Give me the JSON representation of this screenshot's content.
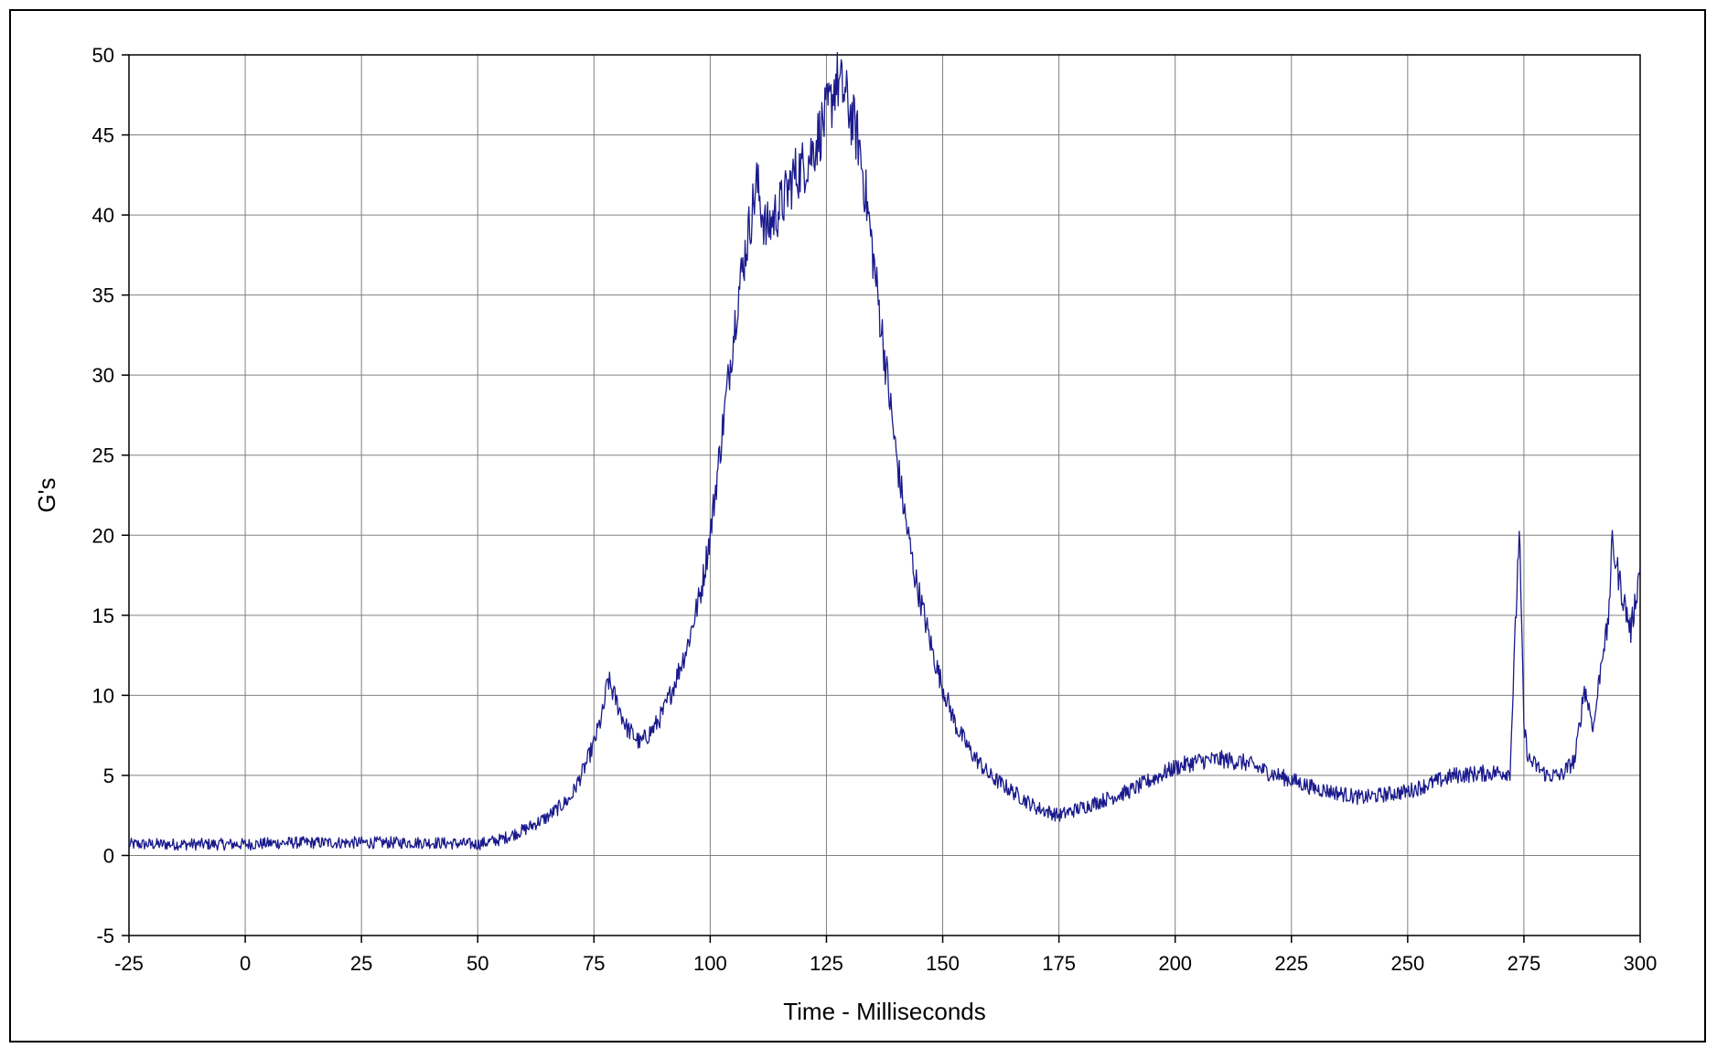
{
  "chart_data": {
    "type": "line",
    "title": "",
    "xlabel": "Time - Milliseconds",
    "ylabel": "G's",
    "xlim": [
      -25,
      300
    ],
    "ylim": [
      -5,
      50
    ],
    "x_ticks": [
      -25,
      0,
      25,
      50,
      75,
      100,
      125,
      150,
      175,
      200,
      225,
      250,
      275,
      300
    ],
    "y_ticks": [
      -5,
      0,
      5,
      10,
      15,
      20,
      25,
      30,
      35,
      40,
      45,
      50
    ],
    "x_tick_labels": [
      "-25",
      "0",
      "25",
      "50",
      "75",
      "100",
      "125",
      "150",
      "175",
      "200",
      "225",
      "250",
      "275",
      "300"
    ],
    "y_tick_labels": [
      "-5",
      "0",
      "5",
      "10",
      "15",
      "20",
      "25",
      "30",
      "35",
      "40",
      "45",
      "50"
    ],
    "grid": true,
    "legend": "none",
    "colors": {
      "series": "#1a1a8c",
      "grid": "#808080",
      "axis": "#000000"
    },
    "series": [
      {
        "x": [
          -25,
          -15,
          -5,
          0,
          10,
          25,
          40,
          50,
          55,
          60,
          65,
          70,
          73,
          75,
          77,
          78,
          80,
          82,
          85,
          88,
          90,
          92,
          95,
          98,
          100,
          102,
          104,
          106,
          108,
          110,
          112,
          114,
          116,
          118,
          120,
          122,
          124,
          126,
          127,
          128,
          129,
          130,
          132,
          134,
          136,
          138,
          140,
          142,
          144,
          146,
          148,
          150,
          153,
          156,
          160,
          165,
          170,
          175,
          180,
          190,
          200,
          205,
          210,
          215,
          220,
          230,
          240,
          250,
          260,
          270,
          272,
          274,
          275,
          276,
          278,
          280,
          283,
          286,
          288,
          290,
          292,
          293,
          294,
          296,
          298,
          300
        ],
        "y": [
          0.7,
          0.7,
          0.7,
          0.7,
          0.8,
          0.8,
          0.8,
          0.7,
          1.0,
          1.6,
          2.4,
          3.6,
          5.5,
          7.0,
          9.0,
          11.0,
          9.5,
          8.0,
          7.0,
          8.0,
          9.0,
          10.5,
          13.0,
          16.5,
          20.0,
          25.0,
          30.0,
          35.0,
          38.5,
          42.0,
          39.0,
          40.0,
          41.0,
          42.5,
          43.0,
          44.0,
          45.5,
          47.0,
          48.5,
          48.0,
          47.5,
          46.5,
          44.5,
          40.0,
          35.0,
          30.0,
          25.0,
          21.0,
          17.5,
          15.0,
          12.5,
          10.5,
          8.0,
          6.5,
          5.0,
          4.0,
          3.0,
          2.5,
          3.0,
          4.0,
          5.5,
          5.9,
          6.0,
          5.8,
          5.2,
          4.2,
          3.6,
          4.0,
          5.0,
          5.2,
          5.2,
          20.5,
          8.0,
          6.0,
          5.5,
          5.0,
          5.0,
          6.0,
          10.5,
          8.0,
          13.0,
          14.0,
          19.5,
          16.5,
          14.0,
          18.0
        ]
      }
    ]
  }
}
